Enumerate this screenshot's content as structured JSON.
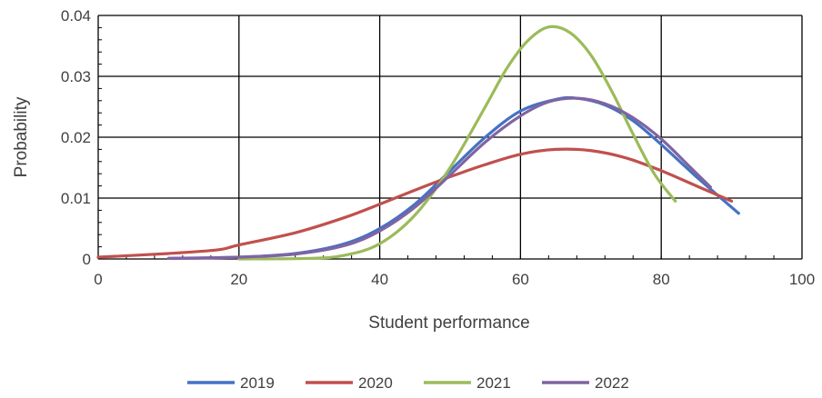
{
  "chart_data": {
    "type": "line",
    "title": "",
    "xlabel": "Student performance",
    "ylabel": "Probability",
    "xlim": [
      0,
      100
    ],
    "ylim": [
      0,
      0.04
    ],
    "x_ticks": [
      0,
      20,
      40,
      60,
      80,
      100
    ],
    "x_tick_labels": [
      "0",
      "20",
      "40",
      "60",
      "80",
      "100"
    ],
    "y_ticks": [
      0,
      0.01,
      0.02,
      0.03,
      0.04
    ],
    "y_tick_labels": [
      "0",
      "0.01",
      "0.02",
      "0.03",
      "0.04"
    ],
    "grid": true,
    "legend_position": "bottom",
    "series": [
      {
        "name": "2019",
        "color": "#4472C4",
        "x": [
          10,
          20,
          28,
          35,
          40,
          45,
          50,
          55,
          60,
          65,
          68,
          72,
          76,
          80,
          85,
          91
        ],
        "y": [
          0.0001,
          0.0003,
          0.0009,
          0.0025,
          0.005,
          0.009,
          0.0145,
          0.02,
          0.0243,
          0.0262,
          0.0264,
          0.0253,
          0.0227,
          0.0188,
          0.0135,
          0.0075
        ]
      },
      {
        "name": "2020",
        "color": "#C0504D",
        "x": [
          0,
          10,
          17,
          20,
          28,
          35,
          40,
          45,
          50,
          55,
          60,
          65,
          70,
          75,
          80,
          85,
          90
        ],
        "y": [
          0.0003,
          0.0009,
          0.0015,
          0.0023,
          0.0043,
          0.0068,
          0.009,
          0.0113,
          0.0135,
          0.0155,
          0.0172,
          0.018,
          0.0178,
          0.0166,
          0.0145,
          0.012,
          0.0095
        ]
      },
      {
        "name": "2021",
        "color": "#9BBB59",
        "x": [
          20,
          30,
          35,
          40,
          45,
          50,
          55,
          58,
          61,
          64,
          67,
          70,
          73,
          76,
          79,
          82
        ],
        "y": [
          0,
          0.0001,
          0.0006,
          0.0025,
          0.0072,
          0.015,
          0.025,
          0.0312,
          0.0358,
          0.0381,
          0.0372,
          0.0335,
          0.0275,
          0.0205,
          0.014,
          0.0095
        ]
      },
      {
        "name": "2022",
        "color": "#8064A2",
        "x": [
          10,
          20,
          28,
          35,
          40,
          45,
          50,
          55,
          60,
          64,
          68,
          72,
          76,
          80,
          84,
          87
        ],
        "y": [
          0.0001,
          0.0003,
          0.0008,
          0.0022,
          0.0046,
          0.0085,
          0.0138,
          0.0192,
          0.0235,
          0.0258,
          0.0264,
          0.0255,
          0.0232,
          0.0197,
          0.0152,
          0.0118
        ]
      }
    ]
  }
}
